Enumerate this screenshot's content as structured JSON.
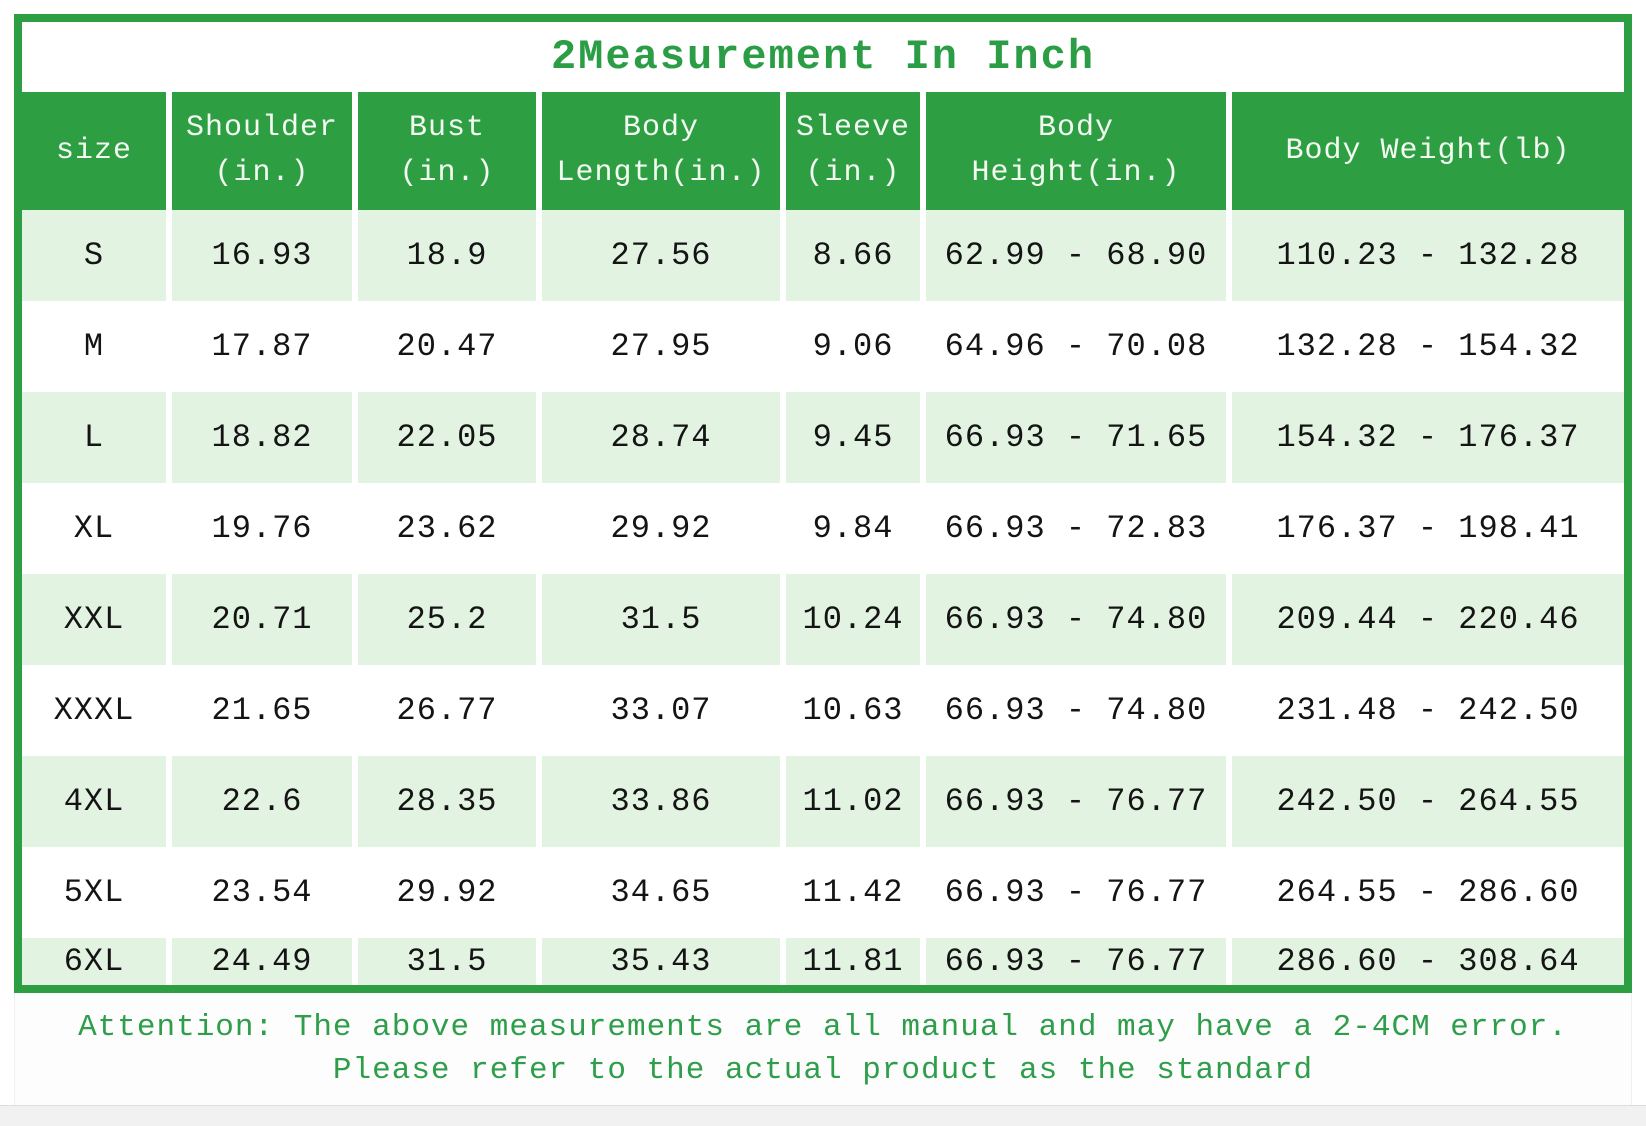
{
  "title": "2Measurement In Inch",
  "colors": {
    "header_green": "#2d9e42",
    "frame_green": "#2d9e42",
    "row_light_green": "#e3f3e2",
    "accent_text_green": "#2f9e4a",
    "data_text": "#141414"
  },
  "table": {
    "header": [
      {
        "line1": "size",
        "line2": ""
      },
      {
        "line1": "Shoulder",
        "line2": "(in.)"
      },
      {
        "line1": "Bust",
        "line2": "(in.)"
      },
      {
        "line1": "Body",
        "line2": "Length(in.)"
      },
      {
        "line1": "Sleeve",
        "line2": "(in.)"
      },
      {
        "line1": "Body",
        "line2": "Height(in.)"
      },
      {
        "line1": "Body Weight(lb)",
        "line2": ""
      }
    ],
    "rows": [
      {
        "size": "S",
        "shoulder": "16.93",
        "bust": "18.9",
        "body_length": "27.56",
        "sleeve": "8.66",
        "body_height": "62.99 - 68.90",
        "body_weight": "110.23 - 132.28"
      },
      {
        "size": "M",
        "shoulder": "17.87",
        "bust": "20.47",
        "body_length": "27.95",
        "sleeve": "9.06",
        "body_height": "64.96 - 70.08",
        "body_weight": "132.28 - 154.32"
      },
      {
        "size": "L",
        "shoulder": "18.82",
        "bust": "22.05",
        "body_length": "28.74",
        "sleeve": "9.45",
        "body_height": "66.93 - 71.65",
        "body_weight": "154.32 - 176.37"
      },
      {
        "size": "XL",
        "shoulder": "19.76",
        "bust": "23.62",
        "body_length": "29.92",
        "sleeve": "9.84",
        "body_height": "66.93 - 72.83",
        "body_weight": "176.37 - 198.41"
      },
      {
        "size": "XXL",
        "shoulder": "20.71",
        "bust": "25.2",
        "body_length": "31.5",
        "sleeve": "10.24",
        "body_height": "66.93 - 74.80",
        "body_weight": "209.44 - 220.46"
      },
      {
        "size": "XXXL",
        "shoulder": "21.65",
        "bust": "26.77",
        "body_length": "33.07",
        "sleeve": "10.63",
        "body_height": "66.93 - 74.80",
        "body_weight": "231.48 - 242.50"
      },
      {
        "size": "4XL",
        "shoulder": "22.6",
        "bust": "28.35",
        "body_length": "33.86",
        "sleeve": "11.02",
        "body_height": "66.93 - 76.77",
        "body_weight": "242.50 - 264.55"
      },
      {
        "size": "5XL",
        "shoulder": "23.54",
        "bust": "29.92",
        "body_length": "34.65",
        "sleeve": "11.42",
        "body_height": "66.93 - 76.77",
        "body_weight": "264.55 - 286.60"
      },
      {
        "size": "6XL",
        "shoulder": "24.49",
        "bust": "31.5",
        "body_length": "35.43",
        "sleeve": "11.81",
        "body_height": "66.93 - 76.77",
        "body_weight": "286.60 - 308.64"
      }
    ]
  },
  "note": {
    "line1": "Attention: The above measurements are all manual and may have a 2-4CM error.",
    "line2": "Please refer to the actual product as the standard"
  },
  "chart_data": {
    "type": "table",
    "title": "2Measurement In Inch",
    "columns": [
      "size",
      "Shoulder (in.)",
      "Bust (in.)",
      "Body Length(in.)",
      "Sleeve (in.)",
      "Body Height(in.)",
      "Body Weight(lb)"
    ],
    "rows": [
      [
        "S",
        "16.93",
        "18.9",
        "27.56",
        "8.66",
        "62.99 - 68.90",
        "110.23 - 132.28"
      ],
      [
        "M",
        "17.87",
        "20.47",
        "27.95",
        "9.06",
        "64.96 - 70.08",
        "132.28 - 154.32"
      ],
      [
        "L",
        "18.82",
        "22.05",
        "28.74",
        "9.45",
        "66.93 - 71.65",
        "154.32 - 176.37"
      ],
      [
        "XL",
        "19.76",
        "23.62",
        "29.92",
        "9.84",
        "66.93 - 72.83",
        "176.37 - 198.41"
      ],
      [
        "XXL",
        "20.71",
        "25.2",
        "31.5",
        "10.24",
        "66.93 - 74.80",
        "209.44 - 220.46"
      ],
      [
        "XXXL",
        "21.65",
        "26.77",
        "33.07",
        "10.63",
        "66.93 - 74.80",
        "231.48 - 242.50"
      ],
      [
        "4XL",
        "22.6",
        "28.35",
        "33.86",
        "11.02",
        "66.93 - 76.77",
        "242.50 - 264.55"
      ],
      [
        "5XL",
        "23.54",
        "29.92",
        "34.65",
        "11.42",
        "66.93 - 76.77",
        "264.55 - 286.60"
      ],
      [
        "6XL",
        "24.49",
        "31.5",
        "35.43",
        "11.81",
        "66.93 - 76.77",
        "286.60 - 308.64"
      ]
    ],
    "note": "Attention: The above measurements are all manual and may have a 2-4CM error. Please refer to the actual product as the standard"
  }
}
